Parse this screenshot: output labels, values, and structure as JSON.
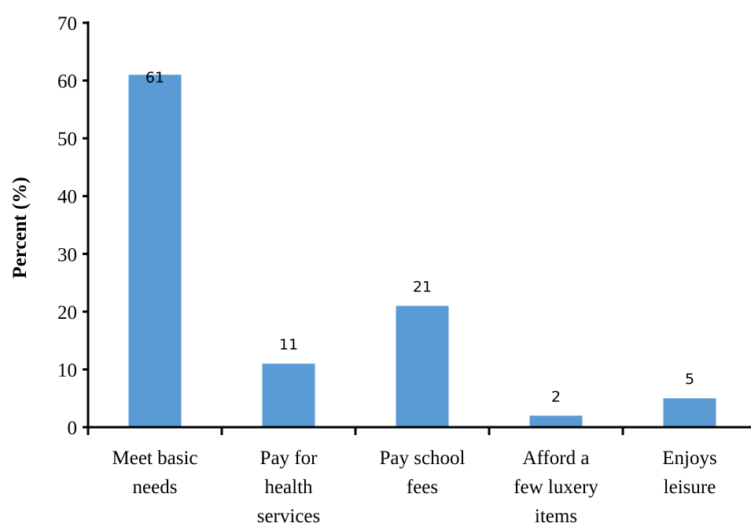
{
  "chart_data": {
    "type": "bar",
    "title": "",
    "xlabel": "",
    "ylabel": "Percent (%)",
    "ylim": [
      0,
      70
    ],
    "yticks": [
      0,
      10,
      20,
      30,
      40,
      50,
      60,
      70
    ],
    "grid": false,
    "legend": "none",
    "bar_color": "#5b9bd5",
    "axis_color": "#000000",
    "categories": [
      [
        "Meet basic",
        "needs"
      ],
      [
        "Pay for",
        "health",
        "services"
      ],
      [
        "Pay school",
        "fees"
      ],
      [
        "Afford  a",
        "few luxery",
        "items"
      ],
      [
        "Enjoys",
        "leisure"
      ]
    ],
    "values": [
      61,
      11,
      21,
      2,
      5
    ],
    "data_labels": [
      "61",
      "11",
      "21",
      "2",
      "5"
    ]
  }
}
